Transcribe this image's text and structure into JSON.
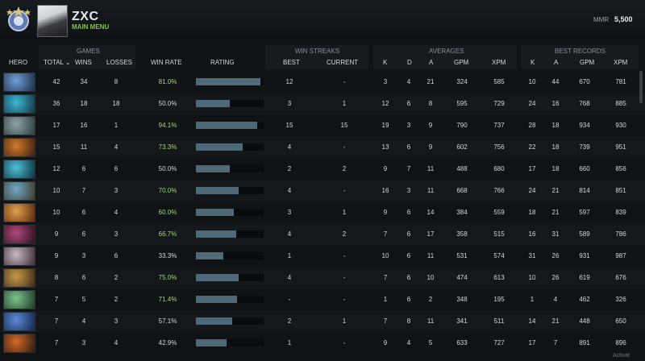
{
  "header": {
    "username": "ZXC",
    "menu_label": "MAIN MENU",
    "mmr_label": "MMR",
    "mmr_value": "5,500"
  },
  "groups": {
    "games": "GAMES",
    "win_streaks": "WIN STREAKS",
    "averages": "AVERAGES",
    "best_records": "BEST RECORDS"
  },
  "columns": {
    "hero": "HERO",
    "total": "TOTAL",
    "wins": "WINS",
    "losses": "LOSSES",
    "win_rate": "WIN RATE",
    "rating": "RATING",
    "best": "BEST",
    "current": "CURRENT",
    "k": "K",
    "d": "D",
    "a": "A",
    "gpm": "GPM",
    "xpm": "XPM",
    "rk": "K",
    "ra": "A",
    "rgpm": "GPM",
    "rxpm": "XPM"
  },
  "rows": [
    {
      "total": "42",
      "wins": "34",
      "losses": "8",
      "wr": "81.0%",
      "rating": 0.95,
      "best": "12",
      "cur": "-",
      "k": "3",
      "d": "4",
      "a": "21",
      "gpm": "324",
      "xpm": "585",
      "bk": "10",
      "ba": "44",
      "bgpm": "670",
      "bxpm": "781",
      "hero": "icon-1",
      "c1": "#6f9ed6",
      "c2": "#1b2a44"
    },
    {
      "total": "36",
      "wins": "18",
      "losses": "18",
      "wr": "50.0%",
      "rating": 0.5,
      "best": "3",
      "cur": "1",
      "k": "12",
      "d": "6",
      "a": "8",
      "gpm": "595",
      "xpm": "729",
      "bk": "24",
      "ba": "16",
      "bgpm": "768",
      "bxpm": "885",
      "hero": "icon-2",
      "c1": "#3fb7d4",
      "c2": "#0f3342"
    },
    {
      "total": "17",
      "wins": "16",
      "losses": "1",
      "wr": "94.1%",
      "rating": 0.9,
      "best": "15",
      "cur": "15",
      "k": "19",
      "d": "3",
      "a": "9",
      "gpm": "790",
      "xpm": "737",
      "bk": "28",
      "ba": "18",
      "bgpm": "934",
      "bxpm": "930",
      "hero": "icon-3",
      "c1": "#8fa3a6",
      "c2": "#2b3a3c"
    },
    {
      "total": "15",
      "wins": "11",
      "losses": "4",
      "wr": "73.3%",
      "rating": 0.69,
      "best": "4",
      "cur": "-",
      "k": "13",
      "d": "6",
      "a": "9",
      "gpm": "602",
      "xpm": "756",
      "bk": "22",
      "ba": "18",
      "bgpm": "739",
      "bxpm": "951",
      "hero": "icon-4",
      "c1": "#d07a2a",
      "c2": "#3a1e0d"
    },
    {
      "total": "12",
      "wins": "6",
      "losses": "6",
      "wr": "50.0%",
      "rating": 0.5,
      "best": "2",
      "cur": "2",
      "k": "9",
      "d": "7",
      "a": "11",
      "gpm": "488",
      "xpm": "680",
      "bk": "17",
      "ba": "18",
      "bgpm": "660",
      "bxpm": "856",
      "hero": "icon-5",
      "c1": "#4cc1d9",
      "c2": "#0e2f3a"
    },
    {
      "total": "10",
      "wins": "7",
      "losses": "3",
      "wr": "70.0%",
      "rating": 0.63,
      "best": "4",
      "cur": "-",
      "k": "16",
      "d": "3",
      "a": "11",
      "gpm": "668",
      "xpm": "766",
      "bk": "24",
      "ba": "21",
      "bgpm": "814",
      "bxpm": "851",
      "hero": "icon-6",
      "c1": "#6fa7c9",
      "c2": "#3b3a25"
    },
    {
      "total": "10",
      "wins": "6",
      "losses": "4",
      "wr": "60.0%",
      "rating": 0.56,
      "best": "3",
      "cur": "1",
      "k": "9",
      "d": "6",
      "a": "14",
      "gpm": "384",
      "xpm": "559",
      "bk": "18",
      "ba": "21",
      "bgpm": "597",
      "bxpm": "839",
      "hero": "icon-7",
      "c1": "#e0a24a",
      "c2": "#5a2410"
    },
    {
      "total": "9",
      "wins": "6",
      "losses": "3",
      "wr": "66.7%",
      "rating": 0.6,
      "best": "4",
      "cur": "2",
      "k": "7",
      "d": "6",
      "a": "17",
      "gpm": "358",
      "xpm": "515",
      "bk": "16",
      "ba": "31",
      "bgpm": "589",
      "bxpm": "786",
      "hero": "icon-8",
      "c1": "#b04a7a",
      "c2": "#2a0f22"
    },
    {
      "total": "9",
      "wins": "3",
      "losses": "6",
      "wr": "33.3%",
      "rating": 0.41,
      "best": "1",
      "cur": "-",
      "k": "10",
      "d": "6",
      "a": "11",
      "gpm": "531",
      "xpm": "574",
      "bk": "31",
      "ba": "26",
      "bgpm": "931",
      "bxpm": "987",
      "hero": "icon-9",
      "c1": "#c9b8c4",
      "c2": "#3a2a34"
    },
    {
      "total": "8",
      "wins": "6",
      "losses": "2",
      "wr": "75.0%",
      "rating": 0.63,
      "best": "4",
      "cur": "-",
      "k": "7",
      "d": "6",
      "a": "10",
      "gpm": "474",
      "xpm": "613",
      "bk": "10",
      "ba": "26",
      "bgpm": "619",
      "bxpm": "676",
      "hero": "icon-10",
      "c1": "#c79a4a",
      "c2": "#3a2814"
    },
    {
      "total": "7",
      "wins": "5",
      "losses": "2",
      "wr": "71.4%",
      "rating": 0.61,
      "best": "-",
      "cur": "-",
      "k": "1",
      "d": "6",
      "a": "2",
      "gpm": "348",
      "xpm": "195",
      "bk": "1",
      "ba": "4",
      "bgpm": "462",
      "bxpm": "326",
      "hero": "icon-11",
      "c1": "#7ec28a",
      "c2": "#1c3a26"
    },
    {
      "total": "7",
      "wins": "4",
      "losses": "3",
      "wr": "57.1%",
      "rating": 0.53,
      "best": "2",
      "cur": "1",
      "k": "7",
      "d": "8",
      "a": "11",
      "gpm": "341",
      "xpm": "511",
      "bk": "14",
      "ba": "21",
      "bgpm": "448",
      "bxpm": "650",
      "hero": "icon-12",
      "c1": "#5a8ad6",
      "c2": "#14244a"
    },
    {
      "total": "7",
      "wins": "3",
      "losses": "4",
      "wr": "42.9%",
      "rating": 0.45,
      "best": "1",
      "cur": "-",
      "k": "9",
      "d": "4",
      "a": "5",
      "gpm": "633",
      "xpm": "727",
      "bk": "17",
      "ba": "7",
      "bgpm": "891",
      "bxpm": "896",
      "hero": "icon-13",
      "c1": "#d46a2a",
      "c2": "#2a1a10"
    }
  ],
  "footer": "Activat"
}
